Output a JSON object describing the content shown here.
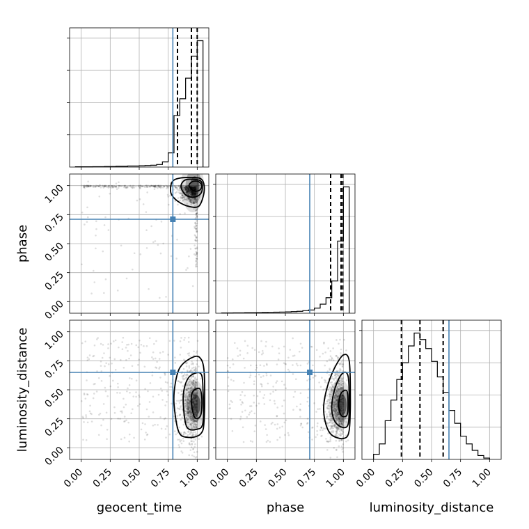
{
  "chart_data": {
    "type": "corner",
    "parameters": [
      "geocent_time",
      "phase",
      "luminosity_distance"
    ],
    "axis_range": [
      -0.1,
      1.1
    ],
    "ticks": [
      0.0,
      0.25,
      0.5,
      0.75,
      1.0
    ],
    "tick_labels": [
      "0.00",
      "0.25",
      "0.50",
      "0.75",
      "1.00"
    ],
    "colors": {
      "truth": "#4682b4",
      "histogram": "#000000",
      "quantile_lines": "#000000",
      "grid": "#b0b0b0"
    },
    "truths": {
      "geocent_time": 0.79,
      "phase": 0.71,
      "luminosity_distance": 0.65
    },
    "grid": true,
    "marginals": [
      {
        "parameter": "geocent_time",
        "bin_edges": [
          -0.05,
          0.0,
          0.05,
          0.1,
          0.15,
          0.2,
          0.25,
          0.3,
          0.35,
          0.4,
          0.45,
          0.5,
          0.55,
          0.6,
          0.65,
          0.7,
          0.75,
          0.8,
          0.85,
          0.9,
          0.95,
          1.0,
          1.05
        ],
        "counts": [
          0.002,
          0.002,
          0.002,
          0.003,
          0.003,
          0.004,
          0.004,
          0.006,
          0.006,
          0.008,
          0.008,
          0.01,
          0.012,
          0.014,
          0.02,
          0.04,
          0.11,
          0.4,
          0.53,
          0.69,
          0.86,
          0.98
        ],
        "quantiles": [
          0.83,
          0.95,
          1.0
        ],
        "ylim": [
          0,
          1.08
        ]
      },
      {
        "parameter": "phase",
        "bin_edges": [
          -0.05,
          0.0,
          0.05,
          0.1,
          0.15,
          0.2,
          0.25,
          0.3,
          0.35,
          0.4,
          0.45,
          0.5,
          0.55,
          0.6,
          0.65,
          0.7,
          0.75,
          0.8,
          0.85,
          0.9,
          0.95,
          1.0,
          1.05
        ],
        "counts": [
          0.002,
          0.002,
          0.003,
          0.003,
          0.004,
          0.004,
          0.005,
          0.006,
          0.007,
          0.008,
          0.009,
          0.01,
          0.012,
          0.015,
          0.02,
          0.025,
          0.04,
          0.07,
          0.12,
          0.25,
          0.56,
          0.98
        ],
        "quantiles": [
          0.89,
          0.98,
          0.995
        ],
        "ylim": [
          0,
          1.08
        ]
      },
      {
        "parameter": "luminosity_distance",
        "bin_edges": [
          0.0,
          0.05,
          0.1,
          0.15,
          0.2,
          0.25,
          0.3,
          0.35,
          0.4,
          0.45,
          0.5,
          0.55,
          0.6,
          0.65,
          0.7,
          0.75,
          0.8,
          0.85,
          0.9,
          0.95,
          1.0
        ],
        "counts": [
          0.04,
          0.12,
          0.3,
          0.46,
          0.62,
          0.75,
          0.88,
          0.98,
          0.93,
          0.86,
          0.76,
          0.64,
          0.52,
          0.38,
          0.28,
          0.18,
          0.12,
          0.07,
          0.03,
          0.01
        ],
        "quantiles": [
          0.24,
          0.4,
          0.6
        ],
        "ylim": [
          0,
          1.08
        ]
      }
    ],
    "joint": [
      {
        "x": "geocent_time",
        "y": "phase",
        "density_peak": [
          0.99,
          0.99
        ],
        "contours": [
          [
            [
              0.77,
              0.98
            ],
            [
              0.79,
              1.04
            ],
            [
              0.85,
              1.065
            ],
            [
              0.95,
              1.07
            ],
            [
              1.03,
              1.06
            ],
            [
              1.06,
              1.0
            ],
            [
              1.05,
              0.9
            ],
            [
              1.01,
              0.82
            ],
            [
              0.93,
              0.82
            ],
            [
              0.84,
              0.86
            ],
            [
              0.78,
              0.92
            ]
          ],
          [
            [
              0.86,
              0.99
            ],
            [
              0.89,
              1.045
            ],
            [
              0.96,
              1.055
            ],
            [
              1.03,
              1.04
            ],
            [
              1.045,
              0.99
            ],
            [
              1.03,
              0.93
            ],
            [
              0.97,
              0.9
            ],
            [
              0.9,
              0.92
            ]
          ],
          [
            [
              0.93,
              1.0
            ],
            [
              0.96,
              1.035
            ],
            [
              1.01,
              1.035
            ],
            [
              1.04,
              1.0
            ],
            [
              1.02,
              0.96
            ],
            [
              0.97,
              0.955
            ]
          ]
        ]
      },
      {
        "x": "geocent_time",
        "y": "luminosity_distance",
        "density_peak": [
          1.0,
          0.37
        ],
        "contours": [
          [
            [
              0.8,
              0.38
            ],
            [
              0.81,
              0.55
            ],
            [
              0.85,
              0.69
            ],
            [
              0.94,
              0.77
            ],
            [
              1.02,
              0.78
            ],
            [
              1.06,
              0.65
            ],
            [
              1.06,
              0.25
            ],
            [
              1.03,
              0.12
            ],
            [
              0.92,
              0.09
            ],
            [
              0.84,
              0.14
            ]
          ],
          [
            [
              0.88,
              0.38
            ],
            [
              0.89,
              0.52
            ],
            [
              0.94,
              0.62
            ],
            [
              1.03,
              0.64
            ],
            [
              1.05,
              0.5
            ],
            [
              1.05,
              0.22
            ],
            [
              1.0,
              0.16
            ],
            [
              0.91,
              0.18
            ]
          ],
          [
            [
              0.95,
              0.38
            ],
            [
              0.96,
              0.48
            ],
            [
              1.02,
              0.51
            ],
            [
              1.04,
              0.42
            ],
            [
              1.03,
              0.28
            ],
            [
              0.98,
              0.26
            ]
          ]
        ]
      },
      {
        "x": "phase",
        "y": "luminosity_distance",
        "density_peak": [
          1.0,
          0.37
        ],
        "contours": [
          [
            [
              0.83,
              0.35
            ],
            [
              0.86,
              0.52
            ],
            [
              0.92,
              0.68
            ],
            [
              1.0,
              0.8
            ],
            [
              1.05,
              0.75
            ],
            [
              1.06,
              0.45
            ],
            [
              1.05,
              0.15
            ],
            [
              1.0,
              0.08
            ],
            [
              0.9,
              0.11
            ],
            [
              0.85,
              0.2
            ]
          ],
          [
            [
              0.9,
              0.36
            ],
            [
              0.93,
              0.52
            ],
            [
              0.99,
              0.64
            ],
            [
              1.04,
              0.62
            ],
            [
              1.05,
              0.4
            ],
            [
              1.04,
              0.2
            ],
            [
              0.98,
              0.18
            ],
            [
              0.92,
              0.24
            ]
          ],
          [
            [
              0.96,
              0.37
            ],
            [
              0.98,
              0.47
            ],
            [
              1.03,
              0.49
            ],
            [
              1.04,
              0.38
            ],
            [
              1.03,
              0.28
            ],
            [
              0.98,
              0.28
            ]
          ]
        ]
      }
    ]
  }
}
